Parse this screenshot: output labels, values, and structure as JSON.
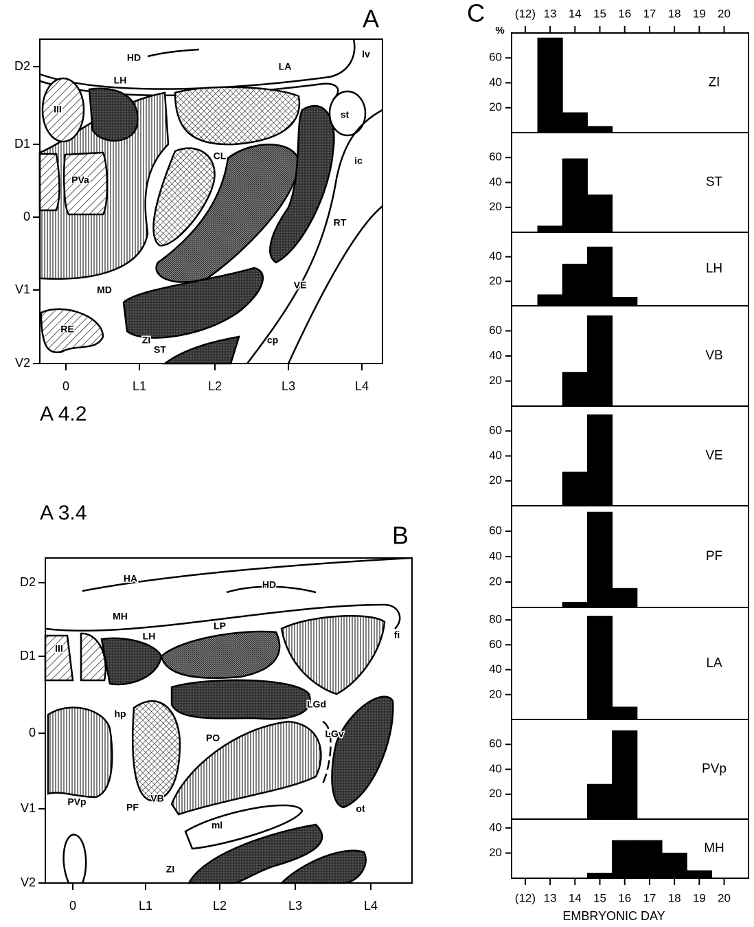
{
  "diagrams": [
    {
      "panel_label": "A",
      "caption": "A 4.2",
      "yticks": [
        "D2",
        "D1",
        "0",
        "V1",
        "V2"
      ],
      "xticks": [
        "0",
        "L1",
        "L2",
        "L3",
        "L4"
      ],
      "regions": [
        "HD",
        "lv",
        "LA",
        "LH",
        "III",
        "st",
        "CL",
        "ic",
        "PVa",
        "RT",
        "MD",
        "VE",
        "RE",
        "ZI",
        "ST",
        "cp"
      ]
    },
    {
      "panel_label": "B",
      "caption": "A 3.4",
      "yticks": [
        "D2",
        "D1",
        "0",
        "V1",
        "V2"
      ],
      "xticks": [
        "0",
        "L1",
        "L2",
        "L3",
        "L4"
      ],
      "regions": [
        "HA",
        "HD",
        "fi",
        "MH",
        "LH",
        "LP",
        "III",
        "LGd",
        "hp",
        "PO",
        "LGv",
        "PVp",
        "PF",
        "VB",
        "ml",
        "ot",
        "ZI"
      ]
    }
  ],
  "chart_data": [
    {
      "type": "histogram",
      "panel_label": "C",
      "ylabel": "%",
      "label": "ZI",
      "color": "#000000",
      "bins": [
        12.5,
        13.5,
        14.5,
        15.5,
        16.5,
        17.5,
        18.5,
        19.5
      ],
      "values": [
        76,
        16,
        5,
        0,
        0,
        0,
        0
      ],
      "xlim": [
        11.45,
        20.98
      ],
      "xticks": [
        {
          "value": 12,
          "label": "(12)"
        },
        13,
        14,
        15,
        16,
        17,
        18,
        19,
        20
      ],
      "ylim": [
        0,
        80
      ],
      "yticks": [
        20,
        40,
        60
      ]
    },
    {
      "type": "histogram",
      "label": "ST",
      "color": "#000000",
      "bins": [
        12.5,
        13.5,
        14.5,
        15.5,
        16.5,
        17.5,
        18.5,
        19.5
      ],
      "values": [
        5,
        59,
        30,
        0,
        0,
        0,
        0
      ],
      "xlim": [
        11.45,
        20.98
      ],
      "ylim": [
        0,
        80
      ],
      "yticks": [
        20,
        40,
        60
      ]
    },
    {
      "type": "histogram",
      "label": "LH",
      "color": "#000000",
      "bins": [
        12.5,
        13.5,
        14.5,
        15.5,
        16.5,
        17.5,
        18.5,
        19.5
      ],
      "values": [
        9,
        34,
        48,
        7,
        0,
        0,
        0
      ],
      "xlim": [
        11.45,
        20.98
      ],
      "ylim": [
        0,
        60
      ],
      "yticks": [
        20,
        40
      ]
    },
    {
      "type": "histogram",
      "label": "VB",
      "color": "#000000",
      "bins": [
        12.5,
        13.5,
        14.5,
        15.5,
        16.5,
        17.5,
        18.5,
        19.5
      ],
      "values": [
        0,
        27,
        72,
        0,
        0,
        0,
        0
      ],
      "xlim": [
        11.45,
        20.98
      ],
      "ylim": [
        0,
        80
      ],
      "yticks": [
        20,
        40,
        60
      ]
    },
    {
      "type": "histogram",
      "label": "VE",
      "color": "#000000",
      "bins": [
        12.5,
        13.5,
        14.5,
        15.5,
        16.5,
        17.5,
        18.5,
        19.5
      ],
      "values": [
        0,
        27,
        73,
        0,
        0,
        0,
        0
      ],
      "xlim": [
        11.45,
        20.98
      ],
      "ylim": [
        0,
        80
      ],
      "yticks": [
        20,
        40,
        60
      ]
    },
    {
      "type": "histogram",
      "label": "PF",
      "color": "#000000",
      "bins": [
        12.5,
        13.5,
        14.5,
        15.5,
        16.5,
        17.5,
        18.5,
        19.5
      ],
      "values": [
        0,
        4,
        75,
        15,
        0,
        0,
        0
      ],
      "xlim": [
        11.45,
        20.98
      ],
      "ylim": [
        0,
        80
      ],
      "yticks": [
        20,
        40,
        60
      ]
    },
    {
      "type": "histogram",
      "label": "LA",
      "color": "#000000",
      "bins": [
        12.5,
        13.5,
        14.5,
        15.5,
        16.5,
        17.5,
        18.5,
        19.5
      ],
      "values": [
        0,
        0,
        83,
        10,
        0,
        0,
        0
      ],
      "xlim": [
        11.45,
        20.98
      ],
      "ylim": [
        0,
        90
      ],
      "yticks": [
        20,
        40,
        60,
        80
      ]
    },
    {
      "type": "histogram",
      "label": "PVp",
      "color": "#000000",
      "bins": [
        12.5,
        13.5,
        14.5,
        15.5,
        16.5,
        17.5,
        18.5,
        19.5
      ],
      "values": [
        0,
        0,
        28,
        71,
        0,
        0,
        0
      ],
      "xlim": [
        11.45,
        20.98
      ],
      "ylim": [
        0,
        80
      ],
      "yticks": [
        20,
        40,
        60
      ]
    },
    {
      "type": "histogram",
      "label": "MH",
      "color": "#000000",
      "bins": [
        12.5,
        13.5,
        14.5,
        15.5,
        16.5,
        17.5,
        18.5,
        19.5
      ],
      "values": [
        0,
        0,
        4,
        30,
        30,
        20,
        6
      ],
      "xlim": [
        11.45,
        20.98
      ],
      "xticks": [
        {
          "value": 12,
          "label": "(12)"
        },
        13,
        14,
        15,
        16,
        17,
        18,
        19,
        20
      ],
      "xlabel": "EMBRYONIC DAY",
      "ylim": [
        0,
        47
      ],
      "yticks": [
        20,
        40
      ]
    }
  ]
}
